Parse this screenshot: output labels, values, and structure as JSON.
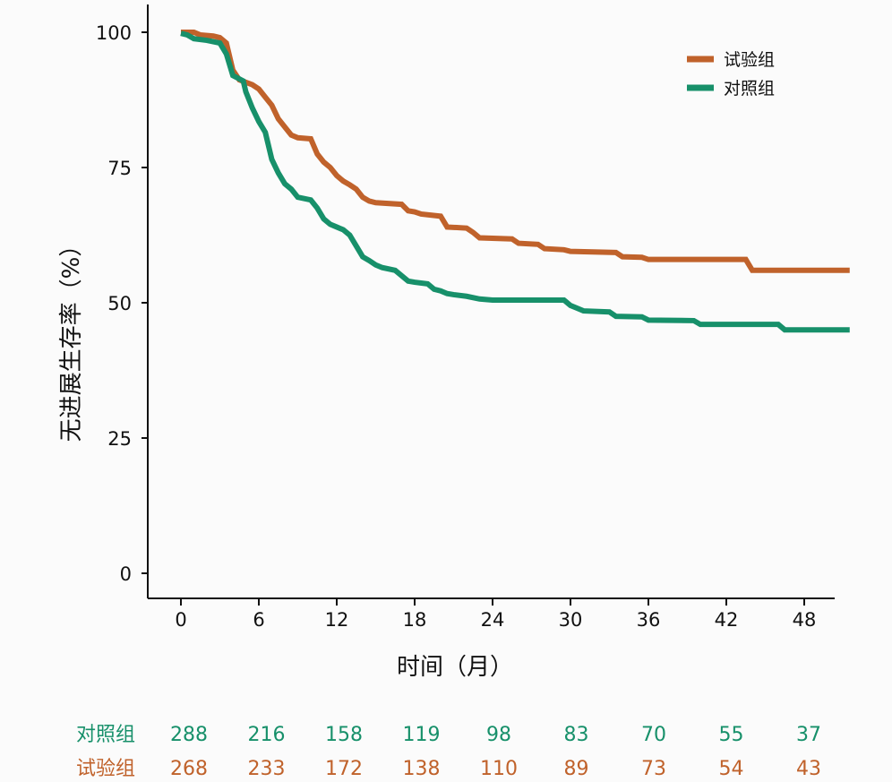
{
  "chart_data": {
    "type": "line",
    "title": "",
    "xlabel": "时间（月）",
    "ylabel": "无进展生存率（%）",
    "xlim": [
      0,
      51.5
    ],
    "ylim": [
      0,
      100
    ],
    "x_ticks": [
      0,
      6,
      12,
      18,
      24,
      30,
      36,
      42,
      48
    ],
    "y_ticks": [
      0,
      25,
      50,
      75,
      100
    ],
    "grid": false,
    "legend_position": "top-right",
    "series": [
      {
        "name": "试验组",
        "color": "#c0622b",
        "step_points": [
          [
            0,
            100
          ],
          [
            1,
            100
          ],
          [
            1.5,
            99.5
          ],
          [
            2.5,
            99.3
          ],
          [
            3,
            99
          ],
          [
            3.5,
            98
          ],
          [
            4,
            93
          ],
          [
            4.5,
            91.2
          ],
          [
            5.5,
            90.3
          ],
          [
            6,
            89.5
          ],
          [
            6.5,
            88
          ],
          [
            7,
            86.5
          ],
          [
            7.5,
            84
          ],
          [
            8,
            82.5
          ],
          [
            8.5,
            81
          ],
          [
            9,
            80.5
          ],
          [
            10,
            80.3
          ],
          [
            10.5,
            77.5
          ],
          [
            11,
            76
          ],
          [
            11.5,
            75
          ],
          [
            12,
            73.5
          ],
          [
            12.5,
            72.5
          ],
          [
            13,
            71.8
          ],
          [
            13.5,
            71
          ],
          [
            14,
            69.5
          ],
          [
            14.5,
            68.8
          ],
          [
            15,
            68.5
          ],
          [
            17,
            68.2
          ],
          [
            17.5,
            67
          ],
          [
            18,
            66.8
          ],
          [
            18.5,
            66.4
          ],
          [
            20,
            66
          ],
          [
            20.5,
            64
          ],
          [
            22,
            63.8
          ],
          [
            22.5,
            63
          ],
          [
            23,
            62
          ],
          [
            25.5,
            61.8
          ],
          [
            26,
            61
          ],
          [
            27.5,
            60.8
          ],
          [
            28,
            60
          ],
          [
            29.5,
            59.8
          ],
          [
            30,
            59.5
          ],
          [
            33.5,
            59.3
          ],
          [
            34,
            58.5
          ],
          [
            35.5,
            58.4
          ],
          [
            36,
            58
          ],
          [
            43.5,
            58
          ],
          [
            44,
            56
          ],
          [
            51.5,
            56
          ]
        ]
      },
      {
        "name": "对照组",
        "color": "#17906a",
        "step_points": [
          [
            0,
            99.8
          ],
          [
            0.5,
            99.5
          ],
          [
            1,
            98.8
          ],
          [
            2,
            98.5
          ],
          [
            3,
            98
          ],
          [
            3.5,
            96
          ],
          [
            4,
            92
          ],
          [
            4.8,
            91
          ],
          [
            5,
            89
          ],
          [
            5.5,
            86
          ],
          [
            6,
            83.5
          ],
          [
            6.5,
            81.5
          ],
          [
            7,
            76.5
          ],
          [
            7.5,
            74
          ],
          [
            8,
            72
          ],
          [
            8.5,
            71
          ],
          [
            9,
            69.5
          ],
          [
            10,
            69
          ],
          [
            10.5,
            67.5
          ],
          [
            11,
            65.5
          ],
          [
            11.5,
            64.5
          ],
          [
            12,
            64
          ],
          [
            12.5,
            63.5
          ],
          [
            13,
            62.5
          ],
          [
            13.5,
            60.5
          ],
          [
            14,
            58.5
          ],
          [
            14.5,
            57.8
          ],
          [
            15,
            57
          ],
          [
            15.5,
            56.5
          ],
          [
            16.5,
            56
          ],
          [
            17,
            55
          ],
          [
            17.5,
            54
          ],
          [
            18,
            53.8
          ],
          [
            19,
            53.5
          ],
          [
            19.5,
            52.5
          ],
          [
            20,
            52.2
          ],
          [
            20.5,
            51.7
          ],
          [
            21,
            51.5
          ],
          [
            22,
            51.2
          ],
          [
            23,
            50.7
          ],
          [
            24,
            50.5
          ],
          [
            29.5,
            50.5
          ],
          [
            30,
            49.5
          ],
          [
            30.5,
            49
          ],
          [
            31,
            48.5
          ],
          [
            33,
            48.3
          ],
          [
            33.5,
            47.5
          ],
          [
            35.5,
            47.4
          ],
          [
            36,
            46.8
          ],
          [
            39.5,
            46.7
          ],
          [
            40,
            46
          ],
          [
            46,
            46
          ],
          [
            46.5,
            45
          ],
          [
            51.5,
            45
          ]
        ]
      }
    ],
    "risk_table": {
      "times": [
        0,
        6,
        12,
        18,
        24,
        30,
        36,
        42,
        48
      ],
      "rows": [
        {
          "label": "对照组",
          "color": "#17906a",
          "values": [
            288,
            216,
            158,
            119,
            98,
            83,
            70,
            55,
            37
          ]
        },
        {
          "label": "试验组",
          "color": "#c0622b",
          "values": [
            268,
            233,
            172,
            138,
            110,
            89,
            73,
            54,
            43
          ]
        }
      ]
    }
  }
}
